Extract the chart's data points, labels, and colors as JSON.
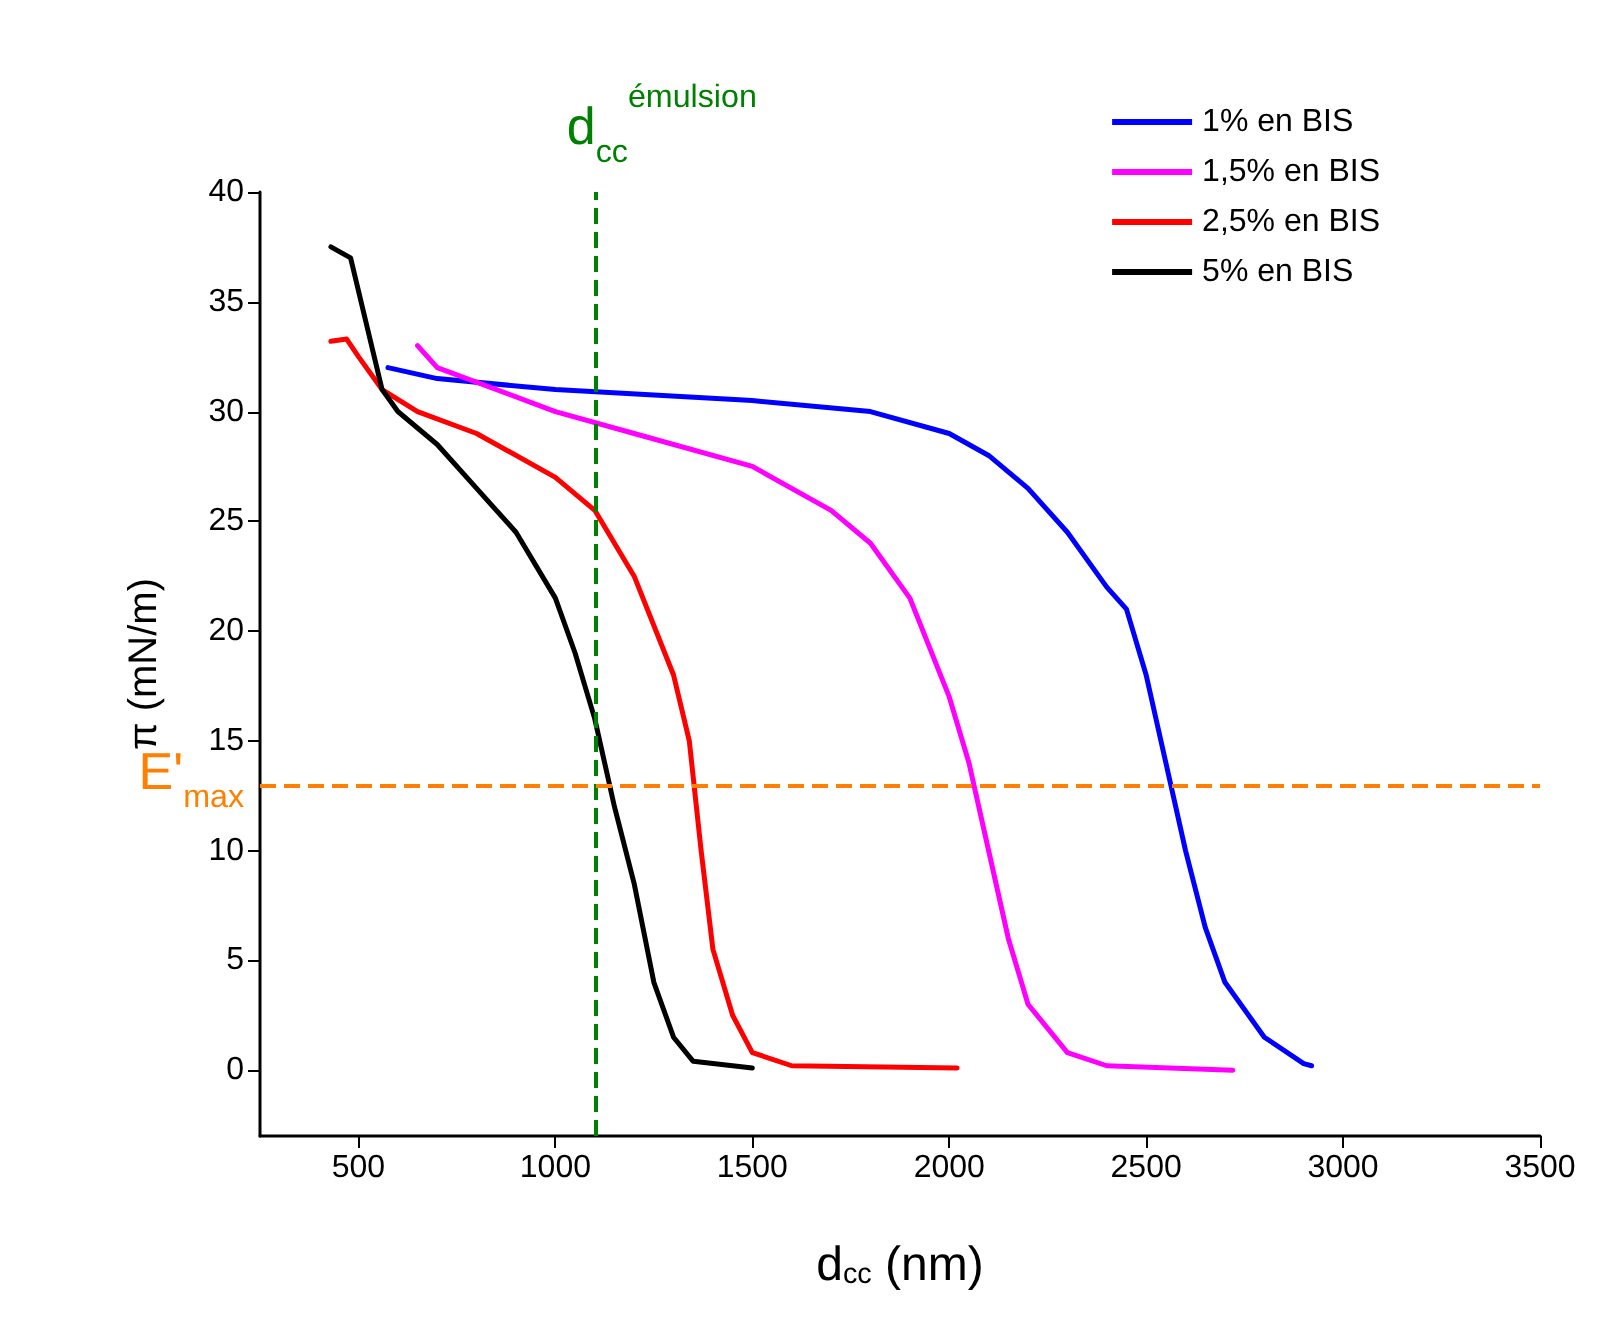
{
  "chart_data": {
    "type": "line",
    "xlabel": "d$_{cc}$ (nm)",
    "ylabel": "π (mN/m)",
    "xlim": [
      250,
      3500
    ],
    "xticks": [
      500,
      1000,
      1500,
      2000,
      2500,
      3000,
      3500
    ],
    "ylim": [
      -3,
      40
    ],
    "yticks": [
      0,
      5,
      10,
      15,
      20,
      25,
      30,
      35,
      40
    ],
    "grid": false,
    "legend": "top right",
    "marker": "none",
    "line_style": "solid",
    "series": [
      {
        "name": "1% en BIS",
        "color": "#0000ff",
        "x": [
          575,
          700,
          1000,
          1500,
          1800,
          2000,
          2100,
          2200,
          2300,
          2400,
          2450,
          2500,
          2550,
          2600,
          2650,
          2700,
          2800,
          2900,
          2920
        ],
        "values": [
          32,
          31.5,
          31,
          30.5,
          30,
          29,
          28,
          26.5,
          24.5,
          22,
          21,
          18,
          14,
          10,
          6.5,
          4,
          1.5,
          0.3,
          0.2
        ]
      },
      {
        "name": "1,5% en BIS",
        "color": "#ff00ff",
        "x": [
          650,
          700,
          1000,
          1200,
          1500,
          1700,
          1800,
          1900,
          2000,
          2050,
          2100,
          2150,
          2200,
          2300,
          2400,
          2720
        ],
        "values": [
          33,
          32,
          30,
          29,
          27.5,
          25.5,
          24,
          21.5,
          17,
          14,
          10,
          6,
          3,
          0.8,
          0.2,
          0
        ]
      },
      {
        "name": "2,5% en BIS",
        "color": "#ff0000",
        "x": [
          430,
          470,
          500,
          560,
          650,
          800,
          1000,
          1100,
          1200,
          1300,
          1340,
          1370,
          1400,
          1450,
          1500,
          1600,
          2020
        ],
        "values": [
          33.2,
          33.3,
          32.5,
          31,
          30,
          29,
          27,
          25.5,
          22.5,
          18,
          15,
          10,
          5.5,
          2.5,
          0.8,
          0.2,
          0.1
        ]
      },
      {
        "name": "5% en BIS",
        "color": "#000000",
        "x": [
          430,
          480,
          520,
          560,
          600,
          700,
          800,
          900,
          1000,
          1050,
          1100,
          1150,
          1200,
          1250,
          1300,
          1350,
          1500
        ],
        "values": [
          37.5,
          37,
          34,
          31,
          30,
          28.5,
          26.5,
          24.5,
          21.5,
          19,
          16,
          12,
          8.5,
          4,
          1.5,
          0.4,
          0.1
        ]
      }
    ],
    "ref_lines": [
      {
        "axis": "x",
        "value": 1100,
        "label": "d$_{cc}$$^{émulsion}$",
        "color": "#008000",
        "line_style": "dashed"
      },
      {
        "axis": "y",
        "value": 13,
        "label": "E'$_{max}$",
        "color": "#ff8000",
        "line_style": "dashed"
      }
    ]
  }
}
